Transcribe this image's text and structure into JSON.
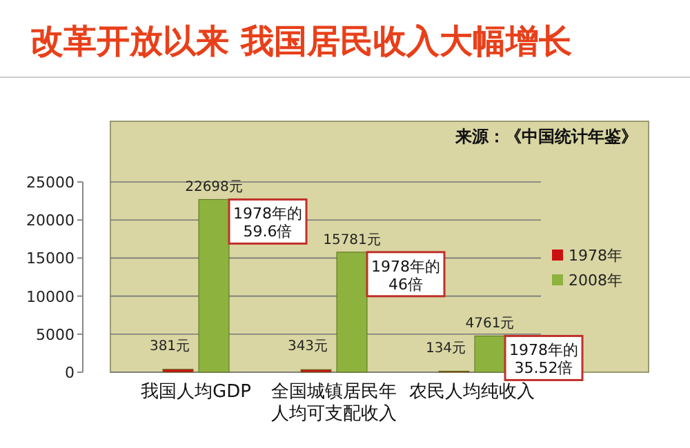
{
  "chart_data": {
    "type": "bar",
    "title": "改革开放以来 我国居民收入大幅增长",
    "categories": [
      "我国人均GDP",
      "全国城镇居民年人均可支配收入",
      "农民人均纯收入"
    ],
    "series": [
      {
        "name": "1978年",
        "color": "#cc1010",
        "values": [
          381,
          343,
          134
        ],
        "value_labels": [
          "381元",
          "343元",
          "134元"
        ]
      },
      {
        "name": "2008年",
        "color": "#8db23e",
        "values": [
          22698,
          15781,
          4761
        ],
        "value_labels": [
          "22698元",
          "15781元",
          "4761元"
        ]
      }
    ],
    "ylim": [
      0,
      25000
    ],
    "yticks": [
      0,
      5000,
      10000,
      15000,
      20000,
      25000
    ],
    "grid": "y",
    "legend": "right",
    "annotations": [
      "来源：《中国统计年鉴》",
      {
        "text": "1978年的59.6倍",
        "x": "我国人均GDP",
        "y": 22698
      },
      {
        "text": "1978年的46倍",
        "x": "全国城镇居民年人均可支配收入",
        "y": 15781
      },
      {
        "text": "1978年的35.52倍",
        "x": "农民人均纯收入",
        "y": 4761
      }
    ]
  }
}
